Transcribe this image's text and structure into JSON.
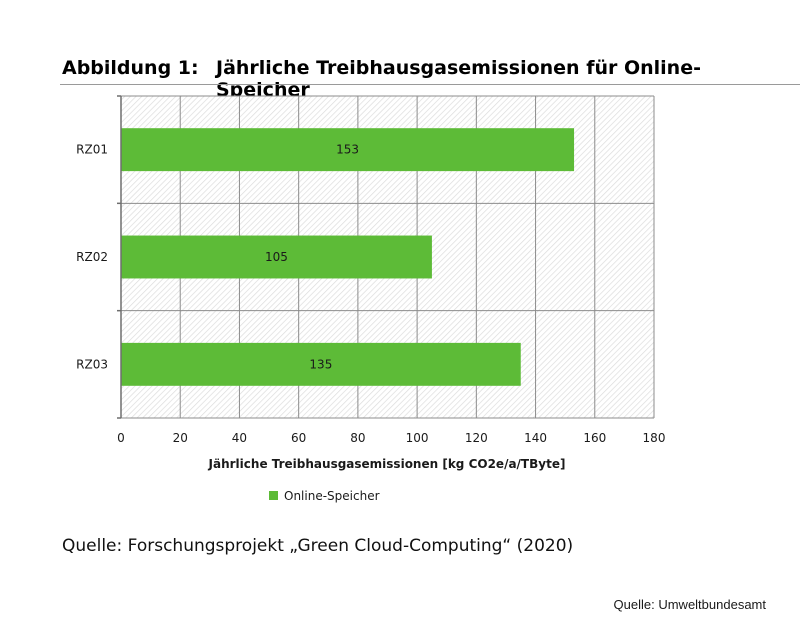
{
  "figure": {
    "number": "Abbildung 1:",
    "title": "Jährliche Treibhausgasemissionen für Online-Speicher"
  },
  "chart_data": {
    "type": "bar",
    "orientation": "horizontal",
    "categories": [
      "RZ01",
      "RZ02",
      "RZ03"
    ],
    "series": [
      {
        "name": "Online-Speicher",
        "values": [
          153,
          105,
          135
        ],
        "color": "#5dbb37"
      }
    ],
    "data_labels": [
      "153",
      "105",
      "135"
    ],
    "xlabel": "Jährliche Treibhausgasemissionen [kg CO2e/a/TByte]",
    "ylabel": "",
    "xlim": [
      0,
      180
    ],
    "x_ticks": [
      0,
      20,
      40,
      60,
      80,
      100,
      120,
      140,
      160,
      180
    ],
    "grid": true,
    "grid_style": "hatched",
    "legend_position": "bottom-left"
  },
  "source_note": "Quelle: Forschungsprojekt „Green Cloud-Computing“ (2020)",
  "credit": "Quelle: Umweltbundesamt"
}
